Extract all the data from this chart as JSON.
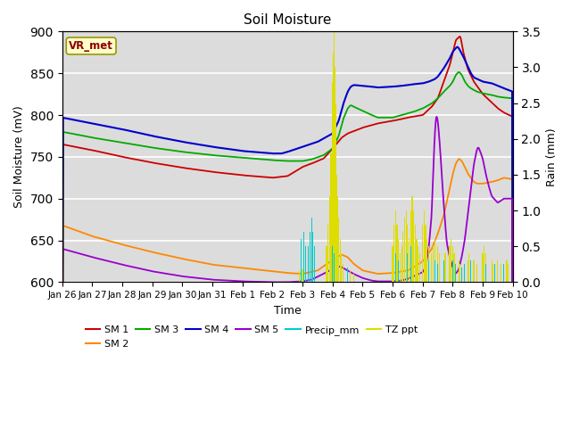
{
  "title": "Soil Moisture",
  "xlabel": "Time",
  "ylabel_left": "Soil Moisture (mV)",
  "ylabel_right": "Rain (mm)",
  "ylim_left": [
    600,
    900
  ],
  "ylim_right": [
    0.0,
    3.5
  ],
  "background_color": "#dcdcdc",
  "grid_color": "white",
  "legend_box_color": "#ffffcc",
  "legend_box_edge": "#999900",
  "vr_met_text_color": "#8b0000",
  "sm1_color": "#cc0000",
  "sm2_color": "#ff8800",
  "sm3_color": "#00aa00",
  "sm4_color": "#0000cc",
  "sm5_color": "#9900cc",
  "precip_color": "#00cccc",
  "tz_color": "#dddd00",
  "tick_labels": [
    "Jan 26",
    "Jan 27",
    "Jan 28",
    "Jan 29",
    "Jan 30",
    "Jan 31",
    "Feb 1",
    "Feb 2",
    "Feb 3",
    "Feb 4",
    "Feb 5",
    "Feb 6",
    "Feb 7",
    "Feb 8",
    "Feb 9",
    "Feb 10"
  ],
  "tick_positions": [
    0,
    1,
    2,
    3,
    4,
    5,
    6,
    7,
    8,
    9,
    10,
    11,
    12,
    13,
    14,
    15
  ]
}
